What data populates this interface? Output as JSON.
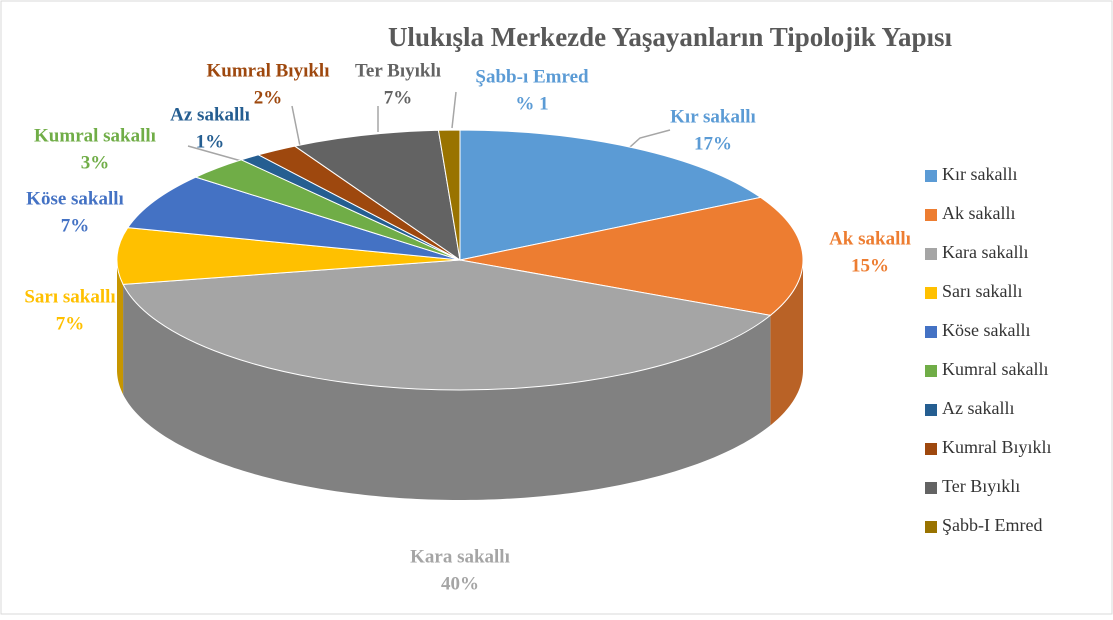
{
  "chart_data": {
    "type": "pie3d",
    "title": "Ulukışla Merkezde Yaşayanların Tipolojik Yapısı",
    "categories": [
      "Kır sakallı",
      "Ak sakallı",
      "Kara sakallı",
      "Sarı sakallı",
      "Köse sakallı",
      "Kumral sakallı",
      "Az sakallı",
      "Kumral Bıyıklı",
      "Ter Bıyıklı",
      "Şabb-I Emred"
    ],
    "data_label_categories": [
      "Kır sakallı",
      "Ak sakallı",
      "Kara sakallı",
      "Sarı sakallı",
      "Köse sakallı",
      "Kumral sakallı",
      "Az sakallı",
      "Kumral Bıyıklı",
      "Ter Bıyıklı",
      "Şabb-ı Emred"
    ],
    "values": [
      17,
      15,
      40,
      7,
      7,
      3,
      1,
      2,
      7,
      1
    ],
    "value_labels": [
      "17%",
      "15%",
      "40%",
      "7%",
      "7%",
      "3%",
      "1%",
      "2%",
      "7%",
      "% 1"
    ],
    "colors": [
      "#5b9bd5",
      "#ed7d31",
      "#a5a5a5",
      "#ffc000",
      "#4472c4",
      "#70ad47",
      "#255e91",
      "#9e480e",
      "#636363",
      "#997300"
    ],
    "legend": "right"
  }
}
